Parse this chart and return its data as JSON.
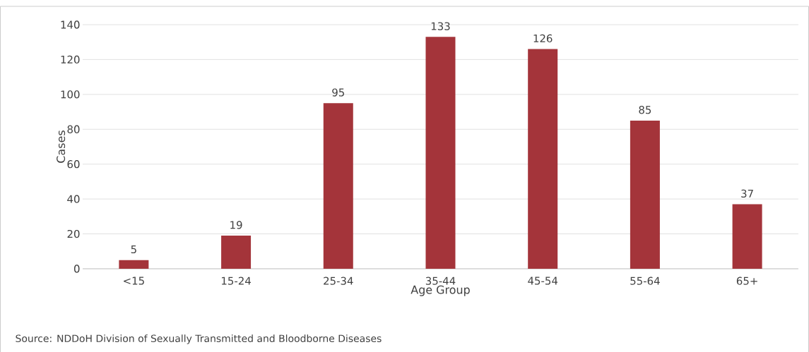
{
  "chart_data": {
    "type": "bar",
    "xlabel": "Age Group",
    "ylabel": "Cases",
    "categories": [
      "<15",
      "15-24",
      "25-34",
      "35-44",
      "45-54",
      "55-64",
      "65+"
    ],
    "values": [
      5,
      19,
      95,
      133,
      126,
      85,
      37
    ],
    "color": "#a4343a",
    "ylim": [
      0,
      140
    ],
    "yticks": [
      0,
      20,
      40,
      60,
      80,
      100,
      120,
      140
    ],
    "grid": "y",
    "data_labels": true,
    "annotations": [
      "Source: NDDoH Division of Sexually Transmitted and Bloodborne Diseases"
    ]
  }
}
